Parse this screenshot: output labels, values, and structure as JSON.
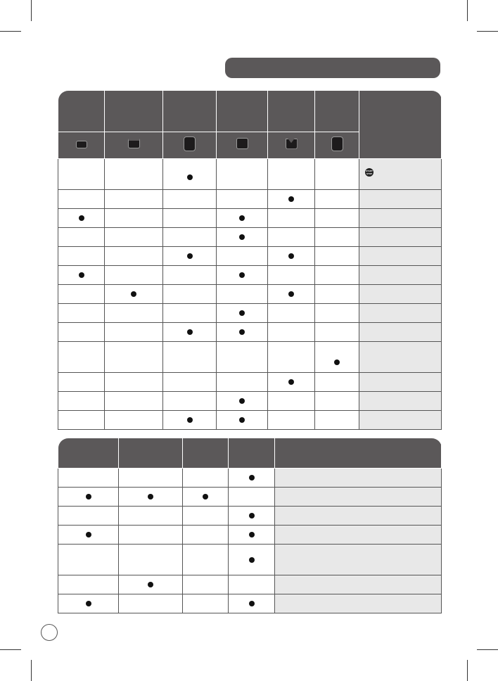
{
  "section_header": "",
  "table1": {
    "columns": 6,
    "start_stop_icon": {
      "label": "START STOP",
      "icon": "start-stop-button-icon"
    },
    "container_icons": [
      "short-wide-container",
      "shallow-container",
      "tall-container",
      "square-container",
      "v-bottom-container",
      "tall-round-container"
    ],
    "rows": [
      {
        "dots": [
          2
        ],
        "tall": true,
        "note_icon": true
      },
      {
        "dots": [
          4
        ]
      },
      {
        "dots": [
          0,
          3
        ]
      },
      {
        "dots": [
          3
        ]
      },
      {
        "dots": [
          2,
          4
        ]
      },
      {
        "dots": [
          0,
          3
        ]
      },
      {
        "dots": [
          1,
          4
        ]
      },
      {
        "dots": [
          3
        ]
      },
      {
        "dots": [
          2,
          3
        ]
      },
      {
        "dots": [
          5
        ],
        "tall": true
      },
      {
        "dots": [
          4
        ]
      },
      {
        "dots": [
          3
        ]
      },
      {
        "dots": [
          2,
          3
        ]
      }
    ]
  },
  "table2": {
    "columns": 4,
    "rows": [
      {
        "dots": [
          3
        ]
      },
      {
        "dots": [
          0,
          1,
          2
        ]
      },
      {
        "dots": [
          3
        ]
      },
      {
        "dots": [
          0,
          3
        ]
      },
      {
        "dots": [
          3
        ],
        "tall": true
      },
      {
        "dots": [
          1
        ]
      },
      {
        "dots": [
          0,
          3
        ]
      }
    ]
  },
  "colors": {
    "header": "#5b5859",
    "note_cell": "#e8e8e8",
    "dot": "#111111"
  }
}
